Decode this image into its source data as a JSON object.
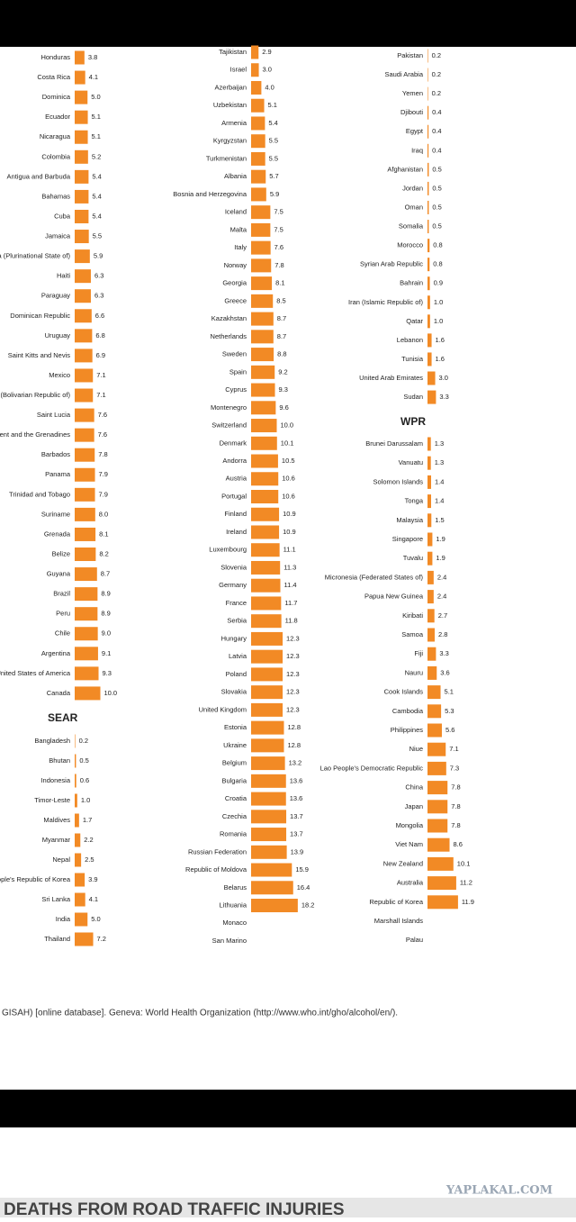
{
  "chart_data": [
    {
      "type": "bar",
      "color": "#f28a25",
      "categories": [
        "Honduras",
        "Costa Rica",
        "Dominica",
        "Ecuador",
        "Nicaragua",
        "Colombia",
        "Antigua and Barbuda",
        "Bahamas",
        "Cuba",
        "Jamaica",
        "ia (Plurinational State of)",
        "Haiti",
        "Paraguay",
        "Dominican Republic",
        "Uruguay",
        "Saint Kitts and Nevis",
        "Mexico",
        "a (Bolivarian Republic of)",
        "Saint Lucia",
        "ncent and the Grenadines",
        "Barbados",
        "Panama",
        "Trinidad and Tobago",
        "Suriname",
        "Grenada",
        "Belize",
        "Guyana",
        "Brazil",
        "Peru",
        "Chile",
        "Argentina",
        "United States of America",
        "Canada"
      ],
      "values": [
        3.8,
        4.1,
        5.0,
        5.1,
        5.1,
        5.2,
        5.4,
        5.4,
        5.4,
        5.5,
        5.9,
        6.3,
        6.3,
        6.6,
        6.8,
        6.9,
        7.1,
        7.1,
        7.6,
        7.6,
        7.8,
        7.9,
        7.9,
        8.0,
        8.1,
        8.2,
        8.7,
        8.9,
        8.9,
        9.0,
        9.1,
        9.3,
        10.0
      ],
      "value_labels": [
        "3.8",
        "4.1",
        "5.0",
        "5.1",
        "5.1",
        "5.2",
        "5.4",
        "5.4",
        "5.4",
        "5.5",
        "5.9",
        "6.3",
        "6.3",
        "6.6",
        "6.8",
        "6.9",
        "7.1",
        "7.1",
        "7.6",
        "7.6",
        "7.8",
        "7.9",
        "7.9",
        "8.0",
        "8.1",
        "8.2",
        "8.7",
        "8.9",
        "8.9",
        "9.0",
        "9.1",
        "9.3",
        "10.0"
      ]
    },
    {
      "type": "bar",
      "title": "SEAR",
      "color": "#f28a25",
      "categories": [
        "Bangladesh",
        "Bhutan",
        "Indonesia",
        "Timor-Leste",
        "Maldives",
        "Myanmar",
        "Nepal",
        "c People's Republic of Korea",
        "Sri Lanka",
        "India",
        "Thailand"
      ],
      "values": [
        0.2,
        0.5,
        0.6,
        1.0,
        1.7,
        2.2,
        2.5,
        3.9,
        4.1,
        5.0,
        7.2
      ],
      "value_labels": [
        "0.2",
        "0.5",
        "0.6",
        "1.0",
        "1.7",
        "2.2",
        "2.5",
        "3.9",
        "4.1",
        "5.0",
        "7.2"
      ]
    },
    {
      "type": "bar",
      "color": "#f28a25",
      "categories": [
        "Tajikistan",
        "Israel",
        "Azerbaijan",
        "Uzbekistan",
        "Armenia",
        "Kyrgyzstan",
        "Turkmenistan",
        "Albania",
        "Bosnia and Herzegovina",
        "Iceland",
        "Malta",
        "Italy",
        "Norway",
        "Georgia",
        "Greece",
        "Kazakhstan",
        "Netherlands",
        "Sweden",
        "Spain",
        "Cyprus",
        "Montenegro",
        "Switzerland",
        "Denmark",
        "Andorra",
        "Austria",
        "Portugal",
        "Finland",
        "Ireland",
        "Luxembourg",
        "Slovenia",
        "Germany",
        "France",
        "Serbia",
        "Hungary",
        "Latvia",
        "Poland",
        "Slovakia",
        "United Kingdom",
        "Estonia",
        "Ukraine",
        "Belgium",
        "Bulgaria",
        "Croatia",
        "Czechia",
        "Romania",
        "Russian Federation",
        "Republic of Moldova",
        "Belarus",
        "Lithuania",
        "Monaco",
        "San Marino"
      ],
      "values": [
        2.9,
        3.0,
        4.0,
        5.1,
        5.4,
        5.5,
        5.5,
        5.7,
        5.9,
        7.5,
        7.5,
        7.6,
        7.8,
        8.1,
        8.5,
        8.7,
        8.7,
        8.8,
        9.2,
        9.3,
        9.6,
        10.0,
        10.1,
        10.5,
        10.6,
        10.6,
        10.9,
        10.9,
        11.1,
        11.3,
        11.4,
        11.7,
        11.8,
        12.3,
        12.3,
        12.3,
        12.3,
        12.3,
        12.8,
        12.8,
        13.2,
        13.6,
        13.6,
        13.7,
        13.7,
        13.9,
        15.9,
        16.4,
        18.2,
        null,
        null
      ],
      "value_labels": [
        "2.9",
        "3.0",
        "4.0",
        "5.1",
        "5.4",
        "5.5",
        "5.5",
        "5.7",
        "5.9",
        "7.5",
        "7.5",
        "7.6",
        "7.8",
        "8.1",
        "8.5",
        "8.7",
        "8.7",
        "8.8",
        "9.2",
        "9.3",
        "9.6",
        "10.0",
        "10.1",
        "10.5",
        "10.6",
        "10.6",
        "10.9",
        "10.9",
        "11.1",
        "11.3",
        "11.4",
        "11.7",
        "11.8",
        "12.3",
        "12.3",
        "12.3",
        "12.3",
        "12.3",
        "12.8",
        "12.8",
        "13.2",
        "13.6",
        "13.6",
        "13.7",
        "13.7",
        "13.9",
        "15.9",
        "16.4",
        "18.2",
        null,
        null
      ]
    },
    {
      "type": "bar",
      "color": "#f28a25",
      "categories": [
        "Pakistan",
        "Saudi Arabia",
        "Yemen",
        "Djibouti",
        "Egypt",
        "Iraq",
        "Afghanistan",
        "Jordan",
        "Oman",
        "Somalia",
        "Morocco",
        "Syrian Arab Republic",
        "Bahrain",
        "Iran (Islamic Republic of)",
        "Qatar",
        "Lebanon",
        "Tunisia",
        "United Arab Emirates",
        "Sudan"
      ],
      "values": [
        0.2,
        0.2,
        0.2,
        0.4,
        0.4,
        0.4,
        0.5,
        0.5,
        0.5,
        0.5,
        0.8,
        0.8,
        0.9,
        1.0,
        1.0,
        1.6,
        1.6,
        3.0,
        3.3
      ],
      "value_labels": [
        "0.2",
        "0.2",
        "0.2",
        "0.4",
        "0.4",
        "0.4",
        "0.5",
        "0.5",
        "0.5",
        "0.5",
        "0.8",
        "0.8",
        "0.9",
        "1.0",
        "1.0",
        "1.6",
        "1.6",
        "3.0",
        "3.3"
      ]
    },
    {
      "type": "bar",
      "title": "WPR",
      "color": "#f28a25",
      "categories": [
        "Brunei Darussalam",
        "Vanuatu",
        "Solomon Islands",
        "Tonga",
        "Malaysia",
        "Singapore",
        "Tuvalu",
        "Micronesia (Federated States of)",
        "Papua New Guinea",
        "Kiribati",
        "Samoa",
        "Fiji",
        "Nauru",
        "Cook Islands",
        "Cambodia",
        "Philippines",
        "Niue",
        "Lao People's Democratic Republic",
        "China",
        "Japan",
        "Mongolia",
        "Viet Nam",
        "New Zealand",
        "Australia",
        "Republic of Korea",
        "Marshall Islands",
        "Palau"
      ],
      "values": [
        1.3,
        1.3,
        1.4,
        1.4,
        1.5,
        1.9,
        1.9,
        2.4,
        2.4,
        2.7,
        2.8,
        3.3,
        3.6,
        5.1,
        5.3,
        5.6,
        7.1,
        7.3,
        7.8,
        7.8,
        7.8,
        8.6,
        10.1,
        11.2,
        11.9,
        null,
        null
      ],
      "value_labels": [
        "1.3",
        "1.3",
        "1.4",
        "1.4",
        "1.5",
        "1.9",
        "1.9",
        "2.4",
        "2.4",
        "2.7",
        "2.8",
        "3.3",
        "3.6",
        "5.1",
        "5.3",
        "5.6",
        "7.1",
        "7.3",
        "7.8",
        "7.8",
        "7.8",
        "8.6",
        "10.1",
        "11.2",
        "11.9",
        null,
        null
      ]
    }
  ],
  "source": "GISAH) [online database]. Geneva: World Health Organization (http://www.who.int/gho/alcohol/en/).",
  "watermark": "YAPLAKAL.COM",
  "next_heading": "DEATHS FROM ROAD TRAFFIC INJURIES"
}
